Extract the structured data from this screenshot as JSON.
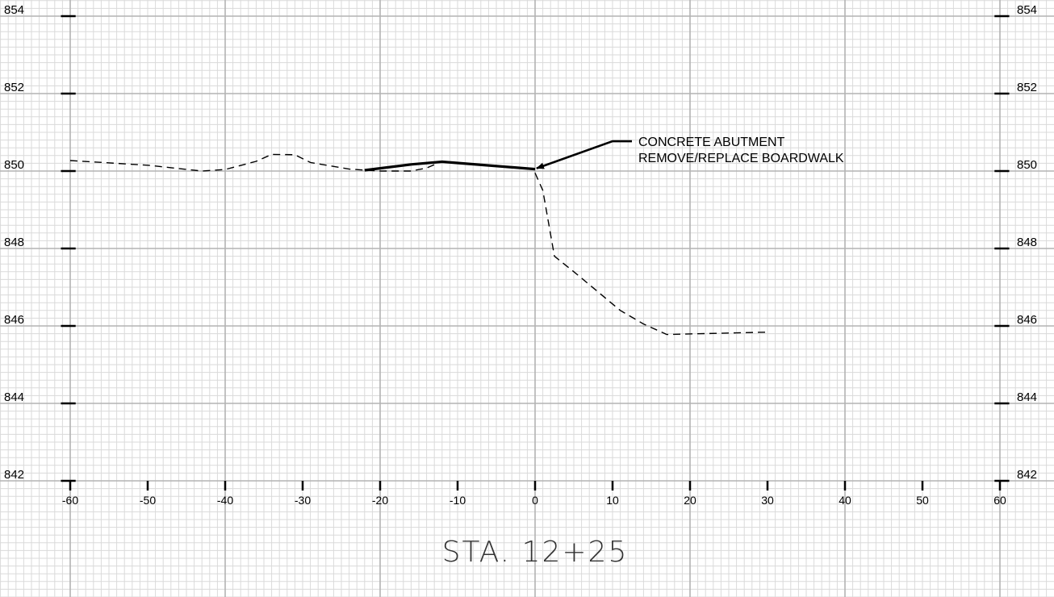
{
  "chart_data": {
    "type": "line",
    "title": "STA. 12+25",
    "xlabel": "",
    "ylabel": "",
    "xlim": [
      -60,
      60
    ],
    "ylim": [
      842,
      854
    ],
    "grid": true,
    "x_ticks": [
      "-60",
      "-50",
      "-40",
      "-30",
      "-20",
      "-10",
      "0",
      "10",
      "20",
      "30",
      "40",
      "50",
      "60"
    ],
    "y_ticks": [
      "854",
      "852",
      "850",
      "848",
      "846",
      "844",
      "842"
    ],
    "series": [
      {
        "style": "dashed",
        "points": [
          [
            -60,
            850.27
          ],
          [
            -50,
            850.15
          ],
          [
            -43,
            850.0
          ],
          [
            -40,
            850.04
          ],
          [
            -36,
            850.25
          ],
          [
            -34,
            850.43
          ],
          [
            -31,
            850.42
          ],
          [
            -29,
            850.22
          ],
          [
            -24,
            850.05
          ],
          [
            -20,
            850.0
          ],
          [
            -16,
            850.0
          ],
          [
            -14,
            850.08
          ],
          [
            -12,
            850.25
          ]
        ]
      },
      {
        "style": "solid",
        "points": [
          [
            -22,
            850.02
          ],
          [
            -16,
            850.17
          ],
          [
            -12,
            850.24
          ],
          [
            0,
            850.05
          ]
        ]
      },
      {
        "style": "dashed",
        "points": [
          [
            0,
            849.95
          ],
          [
            1,
            849.5
          ],
          [
            2.5,
            847.8
          ],
          [
            5,
            847.4
          ],
          [
            8,
            846.9
          ],
          [
            11,
            846.4
          ],
          [
            14,
            846.05
          ],
          [
            17,
            845.78
          ],
          [
            30,
            845.84
          ]
        ]
      }
    ],
    "annotations": [
      {
        "lines": [
          "CONCRETE ABUTMENT",
          "REMOVE/REPLACE BOARDWALK"
        ],
        "arrow_to": [
          0,
          850.05
        ],
        "leader_elbow": [
          10,
          850.77
        ],
        "leader_end": [
          12.5,
          850.77
        ]
      }
    ]
  }
}
